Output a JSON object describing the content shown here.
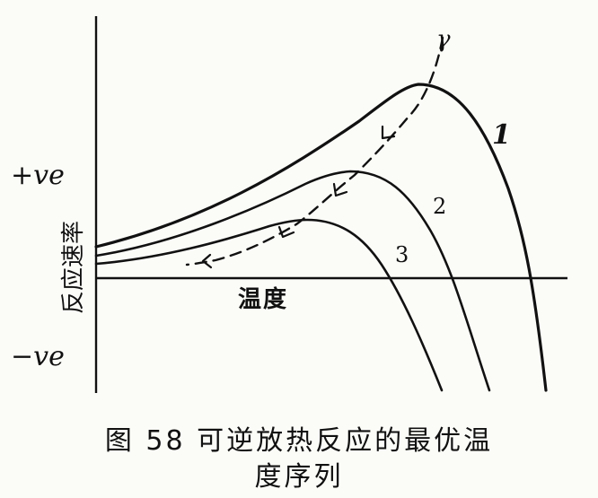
{
  "chart_data": {
    "type": "line",
    "xlabel": "温度",
    "ylabel": "反应速率",
    "y_markers": {
      "positive": "+ve",
      "negative": "−ve"
    },
    "series": [
      {
        "label": "1"
      },
      {
        "label": "2"
      },
      {
        "label": "3"
      }
    ],
    "optimal_path_label": "γ"
  },
  "caption": {
    "line1": "图 58  可逆放热反应的最优温",
    "line2": "度序列"
  }
}
